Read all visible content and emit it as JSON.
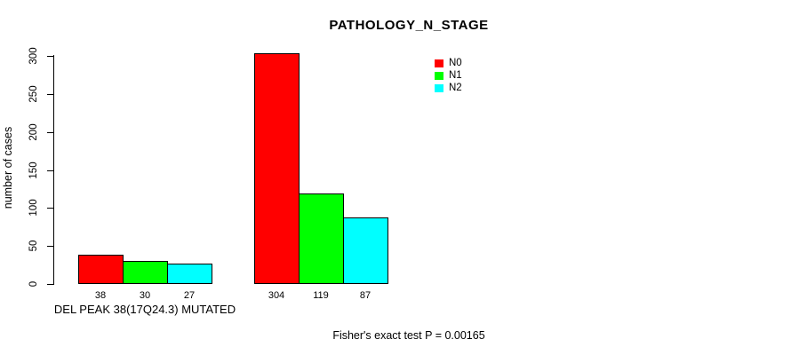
{
  "title": "PATHOLOGY_N_STAGE",
  "y_axis_label": "number of cases",
  "footer": "Fisher's exact test P = 0.00165",
  "colors": {
    "N0": "#FF0000",
    "N1": "#00FF00",
    "N2": "#00FFFF",
    "axis": "#000000",
    "background": "#FFFFFF"
  },
  "legend": {
    "position": "top-right",
    "entries": [
      {
        "label": "N0",
        "color": "#FF0000"
      },
      {
        "label": "N1",
        "color": "#00FF00"
      },
      {
        "label": "N2",
        "color": "#00FFFF"
      }
    ]
  },
  "chart_data": {
    "type": "bar",
    "title": "PATHOLOGY_N_STAGE",
    "categories": [
      "DEL PEAK 38(17Q24.3) MUTATED",
      ""
    ],
    "series": [
      {
        "name": "N0",
        "color": "#FF0000",
        "values": [
          38,
          304
        ]
      },
      {
        "name": "N1",
        "color": "#00FF00",
        "values": [
          30,
          119
        ]
      },
      {
        "name": "N2",
        "color": "#00FFFF",
        "values": [
          27,
          87
        ]
      }
    ],
    "bar_value_labels": [
      [
        38,
        30,
        27
      ],
      [
        304,
        119,
        87
      ]
    ],
    "xlabel": "",
    "ylabel": "number of cases",
    "ylim": [
      0,
      300
    ],
    "yticks": [
      0,
      50,
      100,
      150,
      200,
      250,
      300
    ],
    "grid": false,
    "legend_position": "top-right",
    "annotation": "Fisher's exact test P = 0.00165"
  }
}
